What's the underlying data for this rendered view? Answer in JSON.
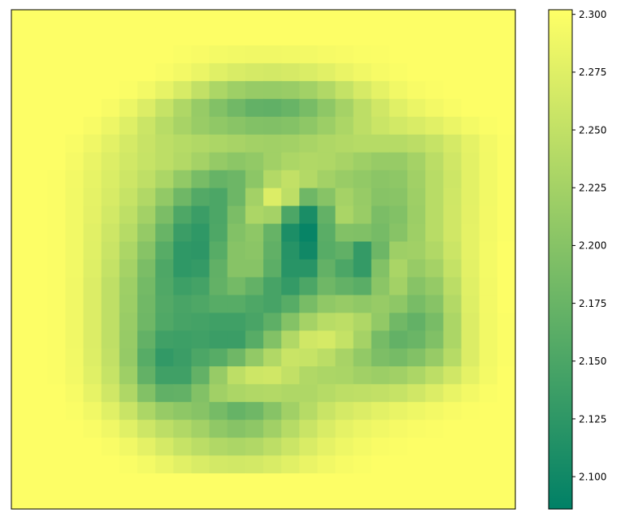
{
  "chart_data": {
    "type": "heatmap",
    "title": "",
    "xlabel": "",
    "ylabel": "",
    "grid": false,
    "axes_ticks": false,
    "rows": 28,
    "cols": 28,
    "colormap": "summer",
    "colorbar": {
      "vmin": 2.086,
      "vmax": 2.302,
      "ticks": [
        2.1,
        2.125,
        2.15,
        2.175,
        2.2,
        2.225,
        2.25,
        2.275,
        2.3
      ],
      "tick_labels": [
        "2.100",
        "2.125",
        "2.150",
        "2.175",
        "2.200",
        "2.225",
        "2.250",
        "2.275",
        "2.300"
      ],
      "colors": {
        "low": "#008066",
        "high": "#ffff66"
      }
    },
    "values": [
      [
        2.3,
        2.3,
        2.3,
        2.3,
        2.3,
        2.3,
        2.3,
        2.3,
        2.3,
        2.3,
        2.3,
        2.3,
        2.3,
        2.3,
        2.3,
        2.3,
        2.3,
        2.3,
        2.3,
        2.3,
        2.3,
        2.3,
        2.3,
        2.3,
        2.3,
        2.3,
        2.3,
        2.3
      ],
      [
        2.3,
        2.3,
        2.3,
        2.3,
        2.3,
        2.3,
        2.3,
        2.3,
        2.3,
        2.3,
        2.3,
        2.3,
        2.3,
        2.3,
        2.3,
        2.3,
        2.3,
        2.3,
        2.3,
        2.3,
        2.3,
        2.3,
        2.3,
        2.3,
        2.3,
        2.3,
        2.3,
        2.3
      ],
      [
        2.3,
        2.3,
        2.3,
        2.3,
        2.3,
        2.3,
        2.3,
        2.3,
        2.3,
        2.298,
        2.296,
        2.293,
        2.291,
        2.29,
        2.29,
        2.291,
        2.292,
        2.294,
        2.296,
        2.298,
        2.299,
        2.3,
        2.3,
        2.3,
        2.3,
        2.3,
        2.3,
        2.3
      ],
      [
        2.3,
        2.3,
        2.3,
        2.3,
        2.3,
        2.3,
        2.3,
        2.3,
        2.297,
        2.292,
        2.285,
        2.276,
        2.27,
        2.266,
        2.265,
        2.267,
        2.271,
        2.277,
        2.284,
        2.29,
        2.295,
        2.298,
        2.3,
        2.3,
        2.3,
        2.3,
        2.3,
        2.3
      ],
      [
        2.3,
        2.3,
        2.3,
        2.3,
        2.3,
        2.3,
        2.298,
        2.292,
        2.282,
        2.268,
        2.25,
        2.232,
        2.22,
        2.214,
        2.213,
        2.216,
        2.223,
        2.236,
        2.252,
        2.267,
        2.28,
        2.29,
        2.296,
        2.299,
        2.3,
        2.3,
        2.3,
        2.3
      ],
      [
        2.3,
        2.3,
        2.3,
        2.3,
        2.3,
        2.296,
        2.286,
        2.272,
        2.254,
        2.234,
        2.214,
        2.196,
        2.182,
        2.17,
        2.168,
        2.174,
        2.188,
        2.206,
        2.226,
        2.246,
        2.262,
        2.276,
        2.285,
        2.292,
        2.297,
        2.3,
        2.3,
        2.3
      ],
      [
        2.3,
        2.3,
        2.3,
        2.3,
        2.296,
        2.287,
        2.274,
        2.258,
        2.242,
        2.228,
        2.216,
        2.208,
        2.202,
        2.196,
        2.195,
        2.198,
        2.206,
        2.218,
        2.232,
        2.246,
        2.257,
        2.264,
        2.27,
        2.277,
        2.285,
        2.293,
        2.298,
        2.3
      ],
      [
        2.3,
        2.3,
        2.3,
        2.297,
        2.289,
        2.278,
        2.266,
        2.255,
        2.246,
        2.24,
        2.236,
        2.232,
        2.228,
        2.224,
        2.222,
        2.224,
        2.229,
        2.234,
        2.238,
        2.24,
        2.24,
        2.24,
        2.245,
        2.254,
        2.266,
        2.28,
        2.292,
        2.299
      ],
      [
        2.3,
        2.3,
        2.3,
        2.294,
        2.284,
        2.273,
        2.263,
        2.254,
        2.246,
        2.238,
        2.226,
        2.212,
        2.205,
        2.21,
        2.222,
        2.232,
        2.236,
        2.234,
        2.228,
        2.22,
        2.214,
        2.214,
        2.226,
        2.244,
        2.262,
        2.278,
        2.291,
        2.299
      ],
      [
        2.3,
        2.3,
        2.299,
        2.292,
        2.282,
        2.271,
        2.26,
        2.248,
        2.232,
        2.21,
        2.188,
        2.172,
        2.178,
        2.205,
        2.238,
        2.25,
        2.238,
        2.224,
        2.216,
        2.21,
        2.204,
        2.206,
        2.222,
        2.242,
        2.26,
        2.278,
        2.291,
        2.299
      ],
      [
        2.3,
        2.3,
        2.299,
        2.291,
        2.28,
        2.268,
        2.254,
        2.236,
        2.21,
        2.18,
        2.156,
        2.15,
        2.178,
        2.224,
        2.272,
        2.246,
        2.18,
        2.2,
        2.226,
        2.214,
        2.2,
        2.202,
        2.22,
        2.242,
        2.261,
        2.278,
        2.291,
        2.299
      ],
      [
        2.3,
        2.3,
        2.299,
        2.291,
        2.279,
        2.264,
        2.247,
        2.224,
        2.19,
        2.152,
        2.136,
        2.15,
        2.19,
        2.232,
        2.226,
        2.15,
        2.108,
        2.17,
        2.23,
        2.216,
        2.19,
        2.196,
        2.218,
        2.242,
        2.262,
        2.279,
        2.292,
        2.299
      ],
      [
        2.3,
        2.3,
        2.299,
        2.291,
        2.277,
        2.26,
        2.24,
        2.212,
        2.174,
        2.136,
        2.126,
        2.152,
        2.196,
        2.206,
        2.172,
        2.11,
        2.092,
        2.162,
        2.196,
        2.194,
        2.186,
        2.2,
        2.22,
        2.242,
        2.262,
        2.28,
        2.292,
        2.299
      ],
      [
        2.3,
        2.3,
        2.299,
        2.291,
        2.276,
        2.256,
        2.232,
        2.2,
        2.16,
        2.126,
        2.124,
        2.16,
        2.2,
        2.204,
        2.168,
        2.118,
        2.1,
        2.16,
        2.168,
        2.13,
        2.178,
        2.22,
        2.222,
        2.236,
        2.258,
        2.28,
        2.293,
        2.3
      ],
      [
        2.3,
        2.3,
        2.299,
        2.291,
        2.274,
        2.252,
        2.226,
        2.19,
        2.152,
        2.126,
        2.13,
        2.168,
        2.2,
        2.2,
        2.164,
        2.12,
        2.12,
        2.17,
        2.15,
        2.13,
        2.196,
        2.23,
        2.214,
        2.226,
        2.252,
        2.278,
        2.293,
        2.3
      ],
      [
        2.3,
        2.3,
        2.299,
        2.29,
        2.272,
        2.248,
        2.22,
        2.184,
        2.154,
        2.138,
        2.144,
        2.17,
        2.184,
        2.17,
        2.146,
        2.13,
        2.15,
        2.18,
        2.17,
        2.162,
        2.204,
        2.224,
        2.2,
        2.212,
        2.244,
        2.276,
        2.292,
        2.3
      ],
      [
        2.3,
        2.3,
        2.299,
        2.29,
        2.272,
        2.248,
        2.218,
        2.182,
        2.156,
        2.148,
        2.152,
        2.16,
        2.16,
        2.152,
        2.146,
        2.16,
        2.188,
        2.208,
        2.214,
        2.208,
        2.214,
        2.206,
        2.188,
        2.2,
        2.238,
        2.274,
        2.292,
        2.3
      ],
      [
        2.3,
        2.3,
        2.299,
        2.29,
        2.272,
        2.248,
        2.216,
        2.18,
        2.154,
        2.146,
        2.144,
        2.14,
        2.14,
        2.148,
        2.166,
        2.198,
        2.226,
        2.242,
        2.246,
        2.234,
        2.21,
        2.182,
        2.17,
        2.188,
        2.232,
        2.272,
        2.291,
        2.299
      ],
      [
        2.3,
        2.3,
        2.299,
        2.29,
        2.272,
        2.248,
        2.214,
        2.17,
        2.14,
        2.138,
        2.14,
        2.136,
        2.136,
        2.16,
        2.196,
        2.236,
        2.262,
        2.266,
        2.252,
        2.226,
        2.186,
        2.17,
        2.176,
        2.194,
        2.232,
        2.272,
        2.291,
        2.299
      ],
      [
        2.3,
        2.3,
        2.299,
        2.291,
        2.273,
        2.25,
        2.212,
        2.16,
        2.128,
        2.136,
        2.15,
        2.16,
        2.18,
        2.21,
        2.236,
        2.256,
        2.254,
        2.244,
        2.228,
        2.21,
        2.192,
        2.186,
        2.196,
        2.214,
        2.24,
        2.272,
        2.291,
        2.299
      ],
      [
        2.3,
        2.3,
        2.299,
        2.292,
        2.276,
        2.254,
        2.22,
        2.17,
        2.14,
        2.14,
        2.17,
        2.214,
        2.246,
        2.26,
        2.262,
        2.25,
        2.236,
        2.232,
        2.23,
        2.222,
        2.218,
        2.222,
        2.232,
        2.246,
        2.262,
        2.28,
        2.293,
        2.3
      ],
      [
        2.3,
        2.3,
        2.3,
        2.295,
        2.282,
        2.262,
        2.234,
        2.196,
        2.168,
        2.17,
        2.196,
        2.222,
        2.232,
        2.236,
        2.238,
        2.234,
        2.234,
        2.24,
        2.246,
        2.248,
        2.25,
        2.254,
        2.262,
        2.272,
        2.283,
        2.292,
        2.298,
        2.3
      ],
      [
        2.3,
        2.3,
        2.3,
        2.298,
        2.29,
        2.276,
        2.256,
        2.232,
        2.214,
        2.206,
        2.2,
        2.186,
        2.172,
        2.18,
        2.2,
        2.222,
        2.24,
        2.256,
        2.266,
        2.272,
        2.278,
        2.283,
        2.288,
        2.292,
        2.296,
        2.299,
        2.3,
        2.3
      ],
      [
        2.3,
        2.3,
        2.3,
        2.3,
        2.297,
        2.289,
        2.276,
        2.26,
        2.246,
        2.236,
        2.224,
        2.208,
        2.2,
        2.206,
        2.222,
        2.24,
        2.256,
        2.27,
        2.28,
        2.286,
        2.29,
        2.294,
        2.297,
        2.299,
        2.3,
        2.3,
        2.3,
        2.3
      ],
      [
        2.3,
        2.3,
        2.3,
        2.3,
        2.3,
        2.297,
        2.29,
        2.279,
        2.266,
        2.254,
        2.244,
        2.236,
        2.232,
        2.236,
        2.246,
        2.258,
        2.27,
        2.28,
        2.288,
        2.293,
        2.297,
        2.299,
        2.3,
        2.3,
        2.3,
        2.3,
        2.3,
        2.3
      ],
      [
        2.3,
        2.3,
        2.3,
        2.3,
        2.3,
        2.3,
        2.298,
        2.293,
        2.285,
        2.277,
        2.27,
        2.265,
        2.263,
        2.265,
        2.27,
        2.277,
        2.284,
        2.29,
        2.295,
        2.298,
        2.3,
        2.3,
        2.3,
        2.3,
        2.3,
        2.3,
        2.3,
        2.3
      ],
      [
        2.3,
        2.3,
        2.3,
        2.3,
        2.3,
        2.3,
        2.3,
        2.3,
        2.3,
        2.3,
        2.3,
        2.3,
        2.3,
        2.3,
        2.3,
        2.3,
        2.3,
        2.3,
        2.3,
        2.3,
        2.3,
        2.3,
        2.3,
        2.3,
        2.3,
        2.3,
        2.3,
        2.3
      ],
      [
        2.3,
        2.3,
        2.3,
        2.3,
        2.3,
        2.3,
        2.3,
        2.3,
        2.3,
        2.3,
        2.3,
        2.3,
        2.3,
        2.3,
        2.3,
        2.3,
        2.3,
        2.3,
        2.3,
        2.3,
        2.3,
        2.3,
        2.3,
        2.3,
        2.3,
        2.3,
        2.3,
        2.3
      ]
    ]
  }
}
